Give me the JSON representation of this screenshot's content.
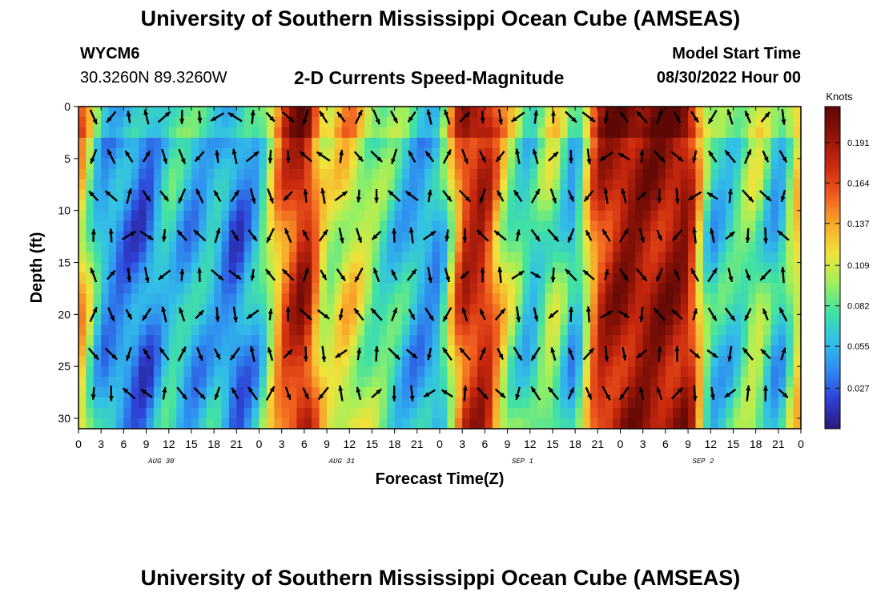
{
  "header": {
    "title": "University of Southern Mississippi Ocean Cube (AMSEAS)",
    "station": "WYCM6",
    "coords": "30.3260N  89.3260W",
    "subtitle": "2-D Currents Speed-Magnitude",
    "model_start_label": "Model Start Time",
    "model_start_value": "08/30/2022 Hour 00"
  },
  "footer": {
    "title": "University of Southern Mississippi Ocean Cube (AMSEAS)"
  },
  "chart_data": {
    "type": "heatmap",
    "title": "2-D Currents Speed-Magnitude",
    "xlabel": "Forecast Time(Z)",
    "ylabel": "Depth (ft)",
    "xlim": [
      0,
      96
    ],
    "ylim": [
      31,
      0
    ],
    "x_tick_values": [
      0,
      3,
      6,
      9,
      12,
      15,
      18,
      21,
      24,
      27,
      30,
      33,
      36,
      39,
      42,
      45,
      48,
      51,
      54,
      57,
      60,
      63,
      66,
      69,
      72,
      75,
      78,
      81,
      84,
      87,
      90,
      93,
      96
    ],
    "x_tick_labels": [
      "0",
      "3",
      "6",
      "9",
      "12",
      "15",
      "18",
      "21",
      "0",
      "3",
      "6",
      "9",
      "12",
      "15",
      "18",
      "21",
      "0",
      "3",
      "6",
      "9",
      "12",
      "15",
      "18",
      "21",
      "0",
      "3",
      "6",
      "9",
      "12",
      "15",
      "18",
      "21",
      "0"
    ],
    "y_ticks": [
      0,
      5,
      10,
      15,
      20,
      25,
      30
    ],
    "date_labels": [
      {
        "x": 11,
        "text": "AUG 30"
      },
      {
        "x": 35,
        "text": "AUG 31"
      },
      {
        "x": 59,
        "text": "SEP 1"
      },
      {
        "x": 83,
        "text": "SEP 2"
      }
    ],
    "colorbar": {
      "unit": "Knots",
      "tick_values": [
        0.027,
        0.055,
        0.082,
        0.109,
        0.137,
        0.164,
        0.191
      ],
      "tick_labels": [
        "0.027",
        "0.055",
        "0.082",
        "0.109",
        "0.137",
        "0.164",
        "0.191"
      ],
      "range": [
        0,
        0.215
      ],
      "colors": [
        "#2a1a78",
        "#2e3fd6",
        "#2f8cf0",
        "#32c0e6",
        "#42e2a2",
        "#a2f05a",
        "#f0e23a",
        "#f8a82a",
        "#ef5a1e",
        "#c8280e",
        "#901408",
        "#5e0806"
      ]
    },
    "profile_speeds_knots": {
      "time_hours": [
        0,
        3,
        6,
        9,
        12,
        15,
        18,
        21,
        24,
        27,
        30,
        33,
        36,
        39,
        42,
        45,
        48,
        51,
        54,
        57,
        60,
        63,
        66,
        69,
        72,
        75,
        78,
        81,
        84,
        87,
        90,
        93,
        96
      ],
      "values": [
        0.14,
        0.05,
        0.04,
        0.03,
        0.07,
        0.05,
        0.06,
        0.03,
        0.06,
        0.15,
        0.19,
        0.1,
        0.12,
        0.09,
        0.07,
        0.05,
        0.05,
        0.17,
        0.18,
        0.1,
        0.06,
        0.1,
        0.05,
        0.17,
        0.19,
        0.19,
        0.19,
        0.19,
        0.06,
        0.07,
        0.1,
        0.05,
        0.13
      ]
    }
  }
}
